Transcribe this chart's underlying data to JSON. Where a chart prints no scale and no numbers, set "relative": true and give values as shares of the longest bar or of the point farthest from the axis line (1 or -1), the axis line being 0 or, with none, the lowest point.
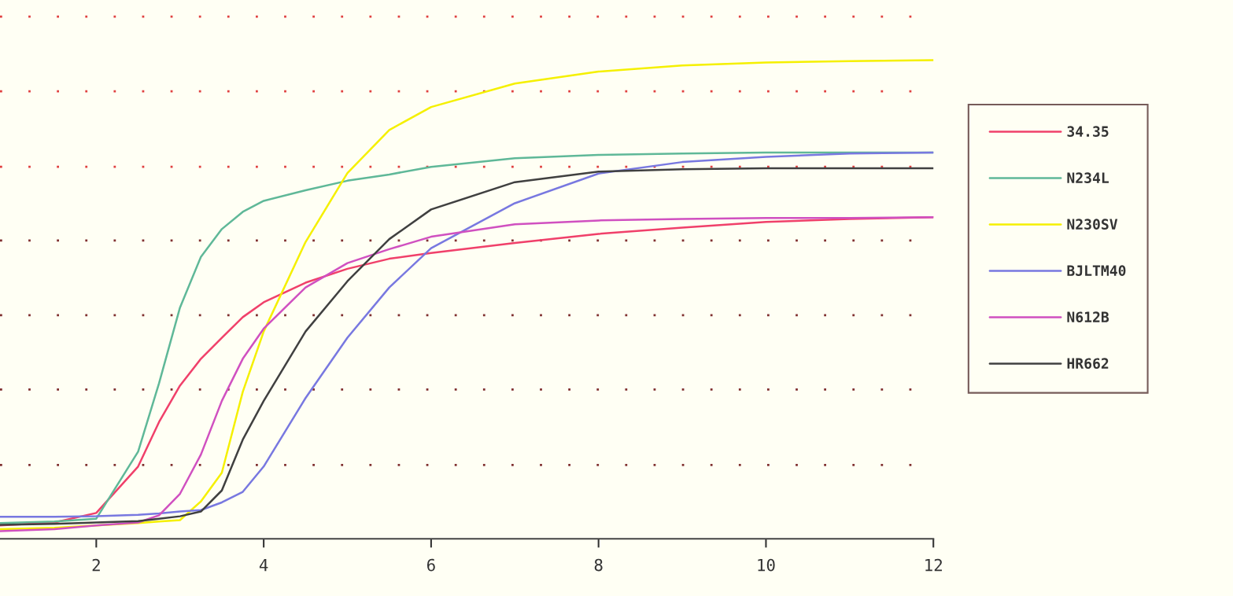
{
  "chart_data": {
    "type": "line",
    "relative": true,
    "x": [
      0.85,
      1.5,
      2,
      2.5,
      2.75,
      3,
      3.25,
      3.5,
      3.75,
      4,
      4.5,
      5,
      5.5,
      6,
      7,
      8,
      9,
      10,
      11,
      12
    ],
    "xlim": [
      0.85,
      12
    ],
    "xticks": [
      2,
      4,
      6,
      8,
      10,
      12
    ],
    "series": [
      {
        "name": "34.35",
        "color": "#f0406a",
        "values": [
          0.028,
          0.034,
          0.054,
          0.151,
          0.244,
          0.32,
          0.376,
          0.42,
          0.463,
          0.494,
          0.535,
          0.564,
          0.585,
          0.597,
          0.618,
          0.637,
          0.65,
          0.662,
          0.668,
          0.672
        ]
      },
      {
        "name": "N234L",
        "color": "#5fb898",
        "values": [
          0.033,
          0.036,
          0.042,
          0.182,
          0.325,
          0.483,
          0.589,
          0.647,
          0.683,
          0.706,
          0.728,
          0.748,
          0.761,
          0.777,
          0.795,
          0.802,
          0.805,
          0.807,
          0.807,
          0.807
        ]
      },
      {
        "name": "N230SV",
        "color": "#f5f000",
        "values": [
          0.02,
          0.023,
          0.028,
          0.033,
          0.036,
          0.039,
          0.078,
          0.138,
          0.307,
          0.433,
          0.62,
          0.764,
          0.854,
          0.902,
          0.951,
          0.976,
          0.989,
          0.995,
          0.998,
          1.0
        ]
      },
      {
        "name": "BJLTM40",
        "color": "#7878e0",
        "values": [
          0.046,
          0.046,
          0.047,
          0.05,
          0.053,
          0.057,
          0.06,
          0.076,
          0.098,
          0.151,
          0.294,
          0.42,
          0.525,
          0.607,
          0.701,
          0.763,
          0.787,
          0.798,
          0.805,
          0.807
        ]
      },
      {
        "name": "N612B",
        "color": "#d050c0",
        "values": [
          0.016,
          0.02,
          0.028,
          0.034,
          0.049,
          0.094,
          0.176,
          0.288,
          0.376,
          0.439,
          0.525,
          0.576,
          0.605,
          0.631,
          0.657,
          0.665,
          0.668,
          0.67,
          0.67,
          0.672
        ]
      },
      {
        "name": "HR662",
        "color": "#404040",
        "values": [
          0.029,
          0.031,
          0.034,
          0.037,
          0.042,
          0.047,
          0.057,
          0.101,
          0.207,
          0.288,
          0.433,
          0.538,
          0.626,
          0.688,
          0.745,
          0.767,
          0.772,
          0.774,
          0.774,
          0.774
        ]
      }
    ],
    "ref_lines": [
      {
        "axis": "y",
        "value": 0.154,
        "color": "#803030",
        "line_style": "dotted"
      },
      {
        "axis": "y",
        "value": 0.312,
        "color": "#803030",
        "line_style": "dotted"
      },
      {
        "axis": "y",
        "value": 0.467,
        "color": "#803030",
        "line_style": "dotted"
      },
      {
        "axis": "y",
        "value": 0.623,
        "color": "#803030",
        "line_style": "dotted"
      },
      {
        "axis": "y",
        "value": 0.777,
        "color": "#e04040",
        "line_style": "dotted"
      },
      {
        "axis": "y",
        "value": 0.935,
        "color": "#e04040",
        "line_style": "dotted"
      },
      {
        "axis": "y",
        "value": 1.091,
        "color": "#e04040",
        "line_style": "dotted"
      }
    ],
    "legend": "right"
  }
}
